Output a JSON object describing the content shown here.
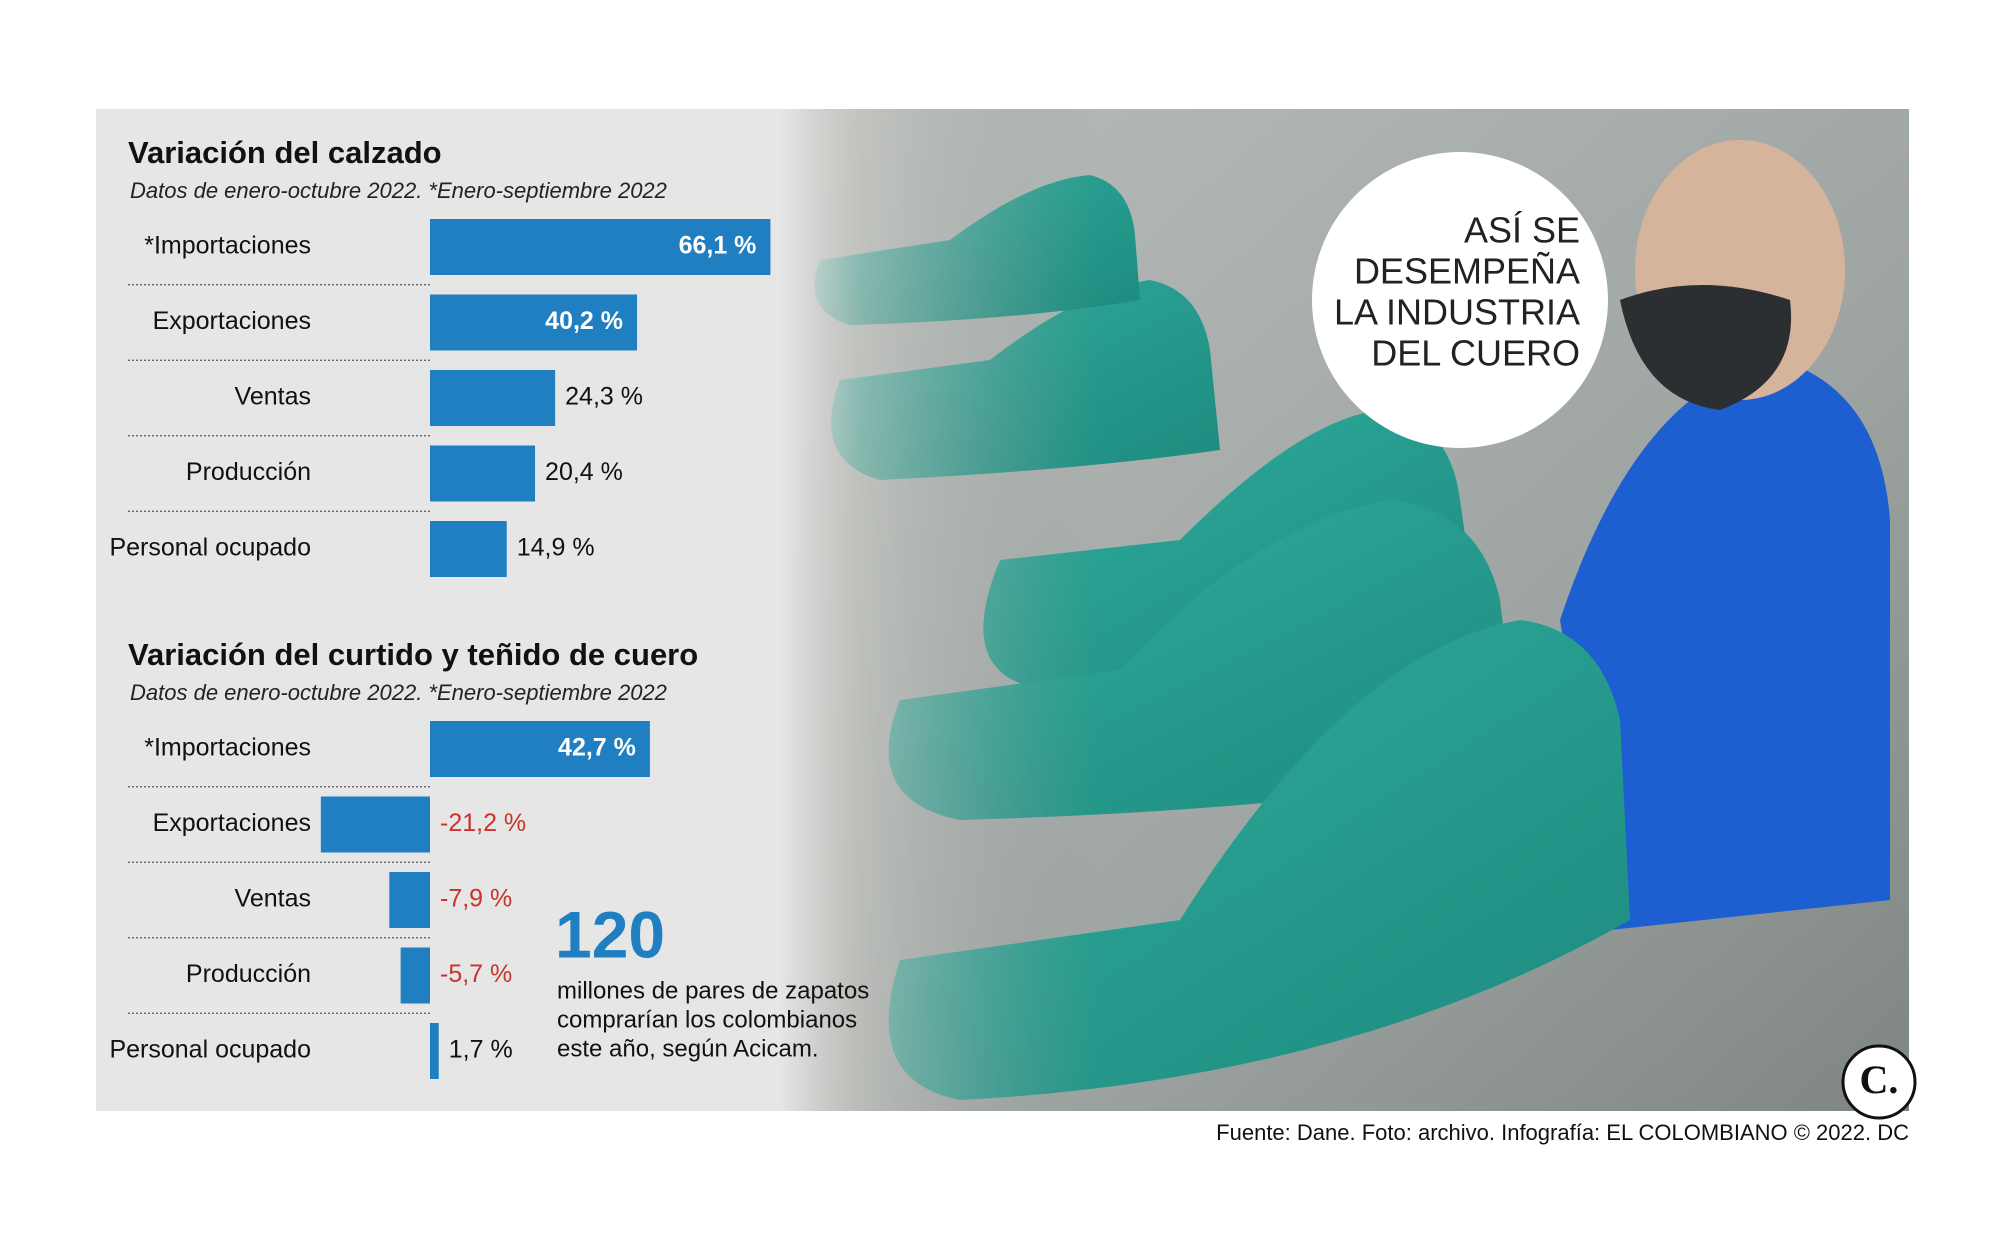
{
  "chart_data": [
    {
      "type": "bar",
      "orientation": "horizontal",
      "title": "Variación del calzado",
      "subtitle": "Datos de enero-octubre 2022. *Enero-septiembre 2022",
      "categories": [
        "*Importaciones",
        "Exportaciones",
        "Ventas",
        "Producción",
        "Personal ocupado"
      ],
      "values": [
        66.1,
        40.2,
        24.3,
        20.4,
        14.9
      ],
      "value_labels": [
        "66,1 %",
        "40,2 %",
        "24,3 %",
        "20,4 %",
        "14,9 %"
      ],
      "color": "#1f7fc1"
    },
    {
      "type": "bar",
      "orientation": "horizontal",
      "title": "Variación del curtido y teñido de cuero",
      "subtitle": "Datos de enero-octubre 2022. *Enero-septiembre 2022",
      "categories": [
        "*Importaciones",
        "Exportaciones",
        "Ventas",
        "Producción",
        "Personal ocupado"
      ],
      "values": [
        42.7,
        -21.2,
        -7.9,
        -5.7,
        1.7
      ],
      "value_labels": [
        "42,7 %",
        "-21,2 %",
        "-7,9 %",
        "-5,7 %",
        "1,7 %"
      ],
      "color": "#1f7fc1"
    }
  ],
  "headline": [
    "ASÍ SE",
    "DESEMPEÑA",
    "LA INDUSTRIA",
    "DEL CUERO"
  ],
  "callout": {
    "number": 120,
    "text": [
      "millones de pares de zapatos",
      "comprarían los colombianos",
      "este año, según Acicam."
    ]
  },
  "source": "Fuente: Dane. Foto: archivo. Infografía: EL COLOMBIANO © 2022. DC",
  "logo": "C."
}
